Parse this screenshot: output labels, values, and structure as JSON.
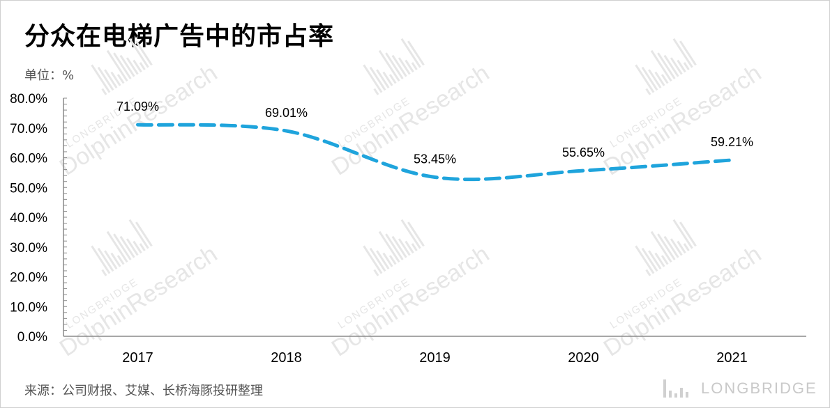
{
  "title": "分众在电梯广告中的市占率",
  "unit_label": "单位：%",
  "source_label": "来源：公司财报、艾媒、长桥海豚投研整理",
  "brand": {
    "text": "LONGBRIDGE"
  },
  "watermark": {
    "line1": "LONGBRIDGE",
    "line2": "DolphinResearch"
  },
  "colors": {
    "series": "#1fa4dc",
    "axis": "#8a8a8a",
    "text": "#000000",
    "watermark": "#e6e6e6"
  },
  "chart_data": {
    "type": "line",
    "title": "分众在电梯广告中的市占率",
    "xlabel": "",
    "ylabel": "单位：%",
    "categories": [
      "2017",
      "2018",
      "2019",
      "2020",
      "2021"
    ],
    "values": [
      71.09,
      69.01,
      53.45,
      55.65,
      59.21
    ],
    "data_labels": [
      "71.09%",
      "69.01%",
      "53.45%",
      "55.65%",
      "59.21%"
    ],
    "ylim": [
      0,
      80
    ],
    "yticks": [
      "0.0%",
      "10.0%",
      "20.0%",
      "30.0%",
      "40.0%",
      "50.0%",
      "60.0%",
      "70.0%",
      "80.0%"
    ],
    "line_style": "dashed",
    "smooth": true,
    "grid": false,
    "legend": "none"
  }
}
